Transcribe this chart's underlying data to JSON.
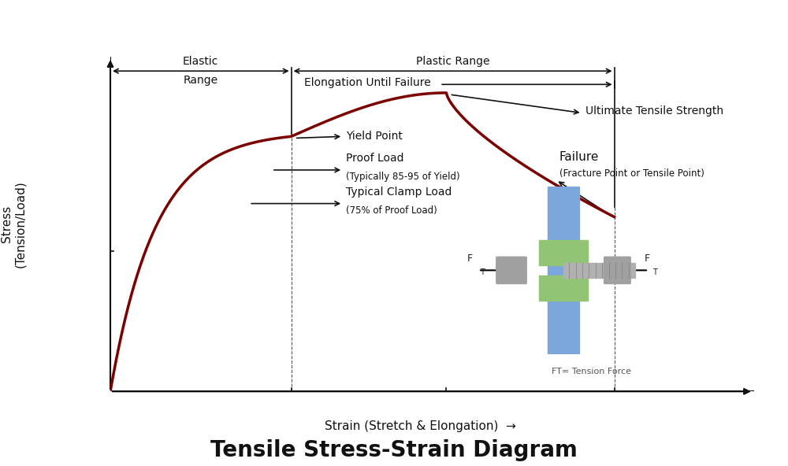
{
  "title": "Tensile Stress-Strain Diagram",
  "title_fontsize": 20,
  "title_fontweight": "bold",
  "bg_color": "#ffffff",
  "curve_color": "#7B0000",
  "curve_linewidth": 2.5,
  "axis_color": "#111111",
  "text_color": "#111111",
  "xlabel": "Strain (Stretch & Elongation)",
  "ylabel": "Stress\n(Tension/Load)",
  "elastic_range_label": "Elastic",
  "elastic_range_label2": "Range",
  "plastic_range_label": "Plastic Range",
  "elongation_label": "Elongation Until Failure",
  "uts_label": "Ultimate Tensile Strength",
  "failure_label": "Failure",
  "failure_sublabel": "(Fracture Point or Tensile Point)",
  "yield_label": "Yield Point",
  "proof_label": "Proof Load",
  "proof_sublabel": "(Typically 85-95 of Yield)",
  "clamp_label": "Typical Clamp Load",
  "clamp_sublabel": "(75% of Proof Load)",
  "ft_label": "FT= Tension Force",
  "xlim": [
    0,
    10
  ],
  "ylim": [
    0,
    10
  ],
  "yield_x": 2.8,
  "yield_y": 7.6,
  "uts_x": 5.2,
  "uts_y": 8.9,
  "failure_x": 7.8,
  "failure_y": 5.2,
  "proof_x": 2.45,
  "proof_y": 6.6,
  "clamp_x": 2.1,
  "clamp_y": 5.6,
  "axis_left_x": 1.3,
  "axis_bottom_y": 0.6
}
